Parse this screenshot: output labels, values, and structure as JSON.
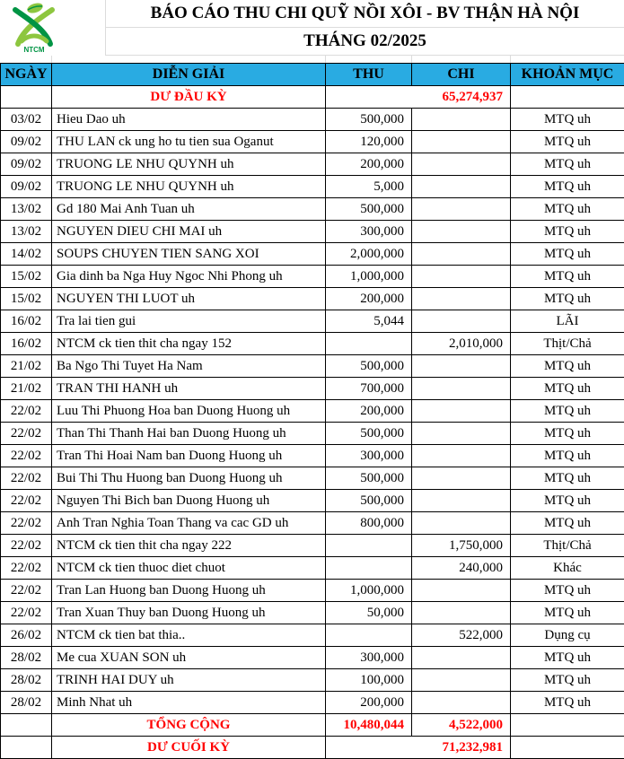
{
  "logo": {
    "text": "NTCM"
  },
  "title": {
    "line1": "BÁO CÁO THU CHI QUỸ NỒI XÔI - BV THẬN HÀ NỘI",
    "line2": "THÁNG 02/2025"
  },
  "colors": {
    "header_bg": "#29ABE2",
    "red": "#FF0000",
    "grid": "#000000",
    "light_grid": "#DCDCDC",
    "logo_green_light": "#8DC63F",
    "logo_green_dark": "#009444"
  },
  "columns": [
    "NGÀY",
    "DIỄN GIẢI",
    "THU",
    "CHI",
    "KHOẢN MỤC"
  ],
  "opening": {
    "label": "DƯ ĐẦU KỲ",
    "amount": "65,274,937"
  },
  "rows": [
    {
      "date": "03/02",
      "desc": "Hieu Dao uh",
      "thu": "500,000",
      "chi": "",
      "category": "MTQ uh"
    },
    {
      "date": "09/02",
      "desc": "THU LAN ck ung ho tu tien sua Oganut",
      "thu": "120,000",
      "chi": "",
      "category": "MTQ uh"
    },
    {
      "date": "09/02",
      "desc": "TRUONG LE NHU QUYNH uh",
      "thu": "200,000",
      "chi": "",
      "category": "MTQ uh"
    },
    {
      "date": "09/02",
      "desc": "TRUONG LE NHU QUYNH uh",
      "thu": "5,000",
      "chi": "",
      "category": "MTQ uh"
    },
    {
      "date": "13/02",
      "desc": "Gd 180 Mai Anh Tuan uh",
      "thu": "500,000",
      "chi": "",
      "category": "MTQ uh"
    },
    {
      "date": "13/02",
      "desc": "NGUYEN DIEU CHI MAI uh",
      "thu": "300,000",
      "chi": "",
      "category": "MTQ uh"
    },
    {
      "date": "14/02",
      "desc": "SOUPS CHUYEN TIEN SANG XOI",
      "thu": "2,000,000",
      "chi": "",
      "category": "MTQ uh"
    },
    {
      "date": "15/02",
      "desc": "Gia dinh ba Nga Huy Ngoc Nhi Phong uh",
      "thu": "1,000,000",
      "chi": "",
      "category": "MTQ uh"
    },
    {
      "date": "15/02",
      "desc": "NGUYEN THI LUOT uh",
      "thu": "200,000",
      "chi": "",
      "category": "MTQ uh"
    },
    {
      "date": "16/02",
      "desc": "Tra lai tien gui",
      "thu": "5,044",
      "chi": "",
      "category": "LÃI"
    },
    {
      "date": "16/02",
      "desc": "NTCM ck tien thit cha ngay 152",
      "thu": "",
      "chi": "2,010,000",
      "category": "Thịt/Chả"
    },
    {
      "date": "21/02",
      "desc": "Ba Ngo Thi Tuyet Ha Nam",
      "thu": "500,000",
      "chi": "",
      "category": "MTQ uh"
    },
    {
      "date": "21/02",
      "desc": "TRAN THI HANH uh",
      "thu": "700,000",
      "chi": "",
      "category": "MTQ uh"
    },
    {
      "date": "22/02",
      "desc": "Luu Thi Phuong Hoa ban Duong Huong uh",
      "thu": "200,000",
      "chi": "",
      "category": "MTQ uh"
    },
    {
      "date": "22/02",
      "desc": "Than Thi Thanh Hai ban Duong Huong uh",
      "thu": "500,000",
      "chi": "",
      "category": "MTQ uh"
    },
    {
      "date": "22/02",
      "desc": "Tran Thi Hoai Nam ban Duong Huong uh",
      "thu": "300,000",
      "chi": "",
      "category": "MTQ uh"
    },
    {
      "date": "22/02",
      "desc": "Bui Thi Thu Huong ban Duong Huong uh",
      "thu": "500,000",
      "chi": "",
      "category": "MTQ uh"
    },
    {
      "date": "22/02",
      "desc": "Nguyen Thi Bich ban Duong Huong uh",
      "thu": "500,000",
      "chi": "",
      "category": "MTQ uh"
    },
    {
      "date": "22/02",
      "desc": "Anh Tran Nghia Toan Thang va cac GD uh",
      "thu": "800,000",
      "chi": "",
      "category": "MTQ uh"
    },
    {
      "date": "22/02",
      "desc": "NTCM ck tien thit cha ngay 222",
      "thu": "",
      "chi": "1,750,000",
      "category": "Thịt/Chả"
    },
    {
      "date": "22/02",
      "desc": "NTCM ck tien thuoc diet chuot",
      "thu": "",
      "chi": "240,000",
      "category": "Khác"
    },
    {
      "date": "22/02",
      "desc": "Tran Lan Huong ban Duong Huong uh",
      "thu": "1,000,000",
      "chi": "",
      "category": "MTQ uh"
    },
    {
      "date": "22/02",
      "desc": "Tran Xuan Thuy ban Duong Huong uh",
      "thu": "50,000",
      "chi": "",
      "category": "MTQ uh"
    },
    {
      "date": "26/02",
      "desc": "NTCM ck tien bat thia..",
      "thu": "",
      "chi": "522,000",
      "category": "Dụng cụ"
    },
    {
      "date": "28/02",
      "desc": "Me cua XUAN SON uh",
      "thu": "300,000",
      "chi": "",
      "category": "MTQ uh"
    },
    {
      "date": "28/02",
      "desc": "TRINH HAI DUY uh",
      "thu": "100,000",
      "chi": "",
      "category": "MTQ uh"
    },
    {
      "date": "28/02",
      "desc": "Minh Nhat uh",
      "thu": "200,000",
      "chi": "",
      "category": "MTQ uh"
    }
  ],
  "total": {
    "label": "TỔNG CỘNG",
    "thu": "10,480,044",
    "chi": "4,522,000"
  },
  "closing": {
    "label": "DƯ CUỐI KỲ",
    "amount": "71,232,981"
  }
}
